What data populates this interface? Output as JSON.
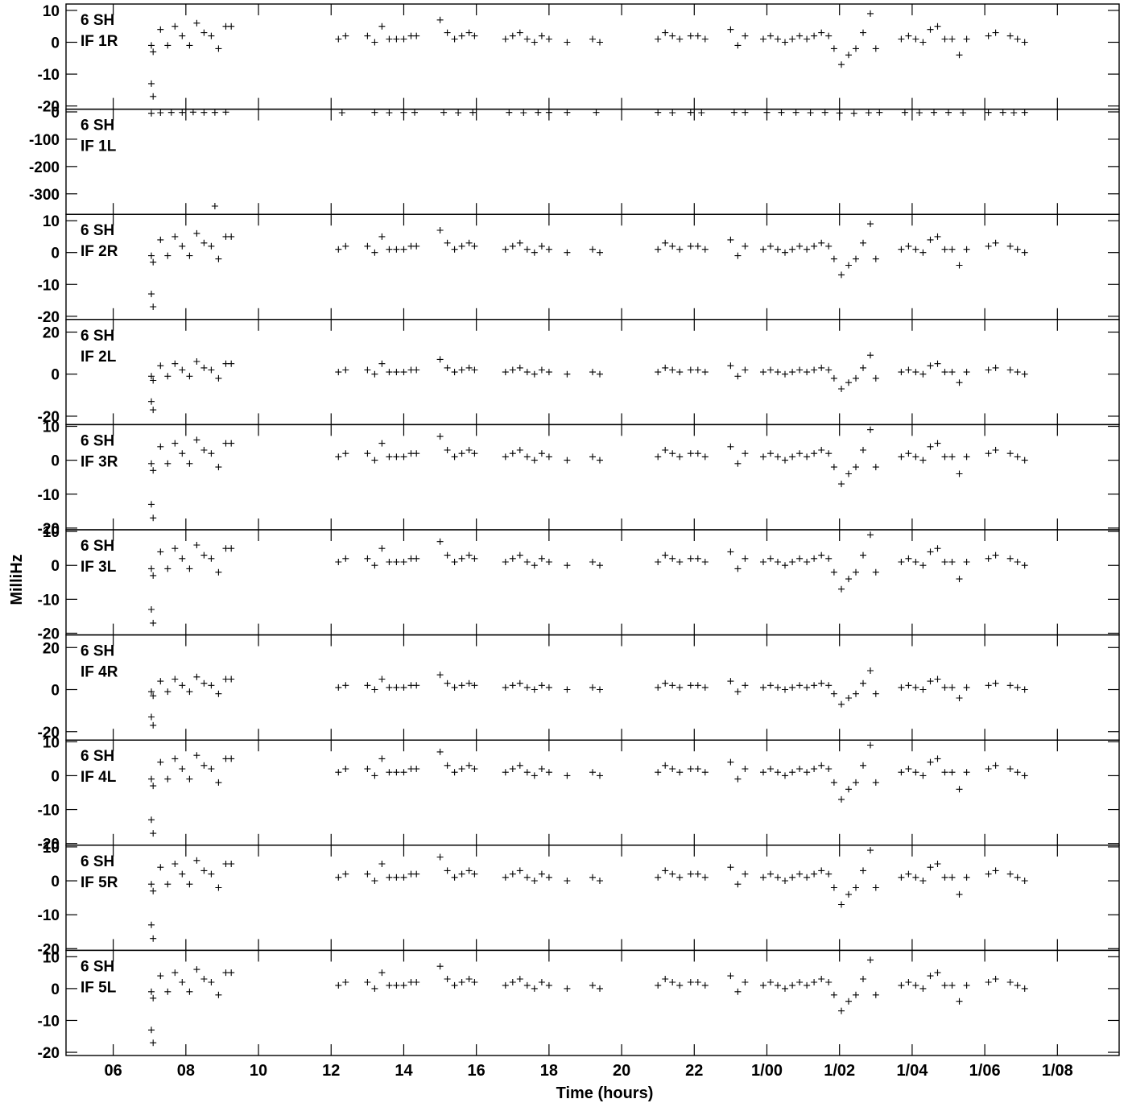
{
  "chart_data": {
    "type": "scatter",
    "xlabel": "Time (hours)",
    "ylabel": "MilliHz",
    "x_tick_labels": [
      "06",
      "08",
      "10",
      "12",
      "14",
      "16",
      "18",
      "20",
      "22",
      "1/00",
      "1/02",
      "1/04",
      "1/06",
      "1/08"
    ],
    "x_tick_hours": [
      6,
      8,
      10,
      12,
      14,
      16,
      18,
      20,
      22,
      24,
      26,
      28,
      30,
      32
    ],
    "xlim_hours": [
      4.7,
      33.7
    ],
    "marker": "+",
    "color": "#000000",
    "panels": [
      {
        "station": "6 SH",
        "channel": "IF 1R",
        "ylim": [
          -21,
          12
        ],
        "yticks": [
          10,
          0,
          -10,
          -20
        ],
        "tick_labels": [
          "10",
          "0",
          "-10",
          "-20"
        ]
      },
      {
        "station": "6 SH",
        "channel": "IF 1L",
        "ylim": [
          -375,
          10
        ],
        "yticks": [
          0,
          -100,
          -200,
          -300
        ],
        "tick_labels": [
          "0",
          "-100",
          "-200",
          "-300"
        ]
      },
      {
        "station": "6 SH",
        "channel": "IF 2R",
        "ylim": [
          -21,
          12
        ],
        "yticks": [
          10,
          0,
          -10,
          -20
        ],
        "tick_labels": [
          "10",
          "0",
          "-10",
          "-20"
        ]
      },
      {
        "station": "6 SH",
        "channel": "IF 2L",
        "ylim": [
          -24,
          26
        ],
        "yticks": [
          20,
          0,
          -20
        ],
        "tick_labels": [
          "20",
          "0",
          "-20"
        ]
      },
      {
        "station": "6 SH",
        "channel": "IF 3R",
        "ylim": [
          -20.5,
          10.5
        ],
        "yticks": [
          10,
          0,
          -10,
          -20
        ],
        "tick_labels": [
          "10",
          "0",
          "-10",
          "-20"
        ]
      },
      {
        "station": "6 SH",
        "channel": "IF 3L",
        "ylim": [
          -20.5,
          10.5
        ],
        "yticks": [
          10,
          0,
          -10,
          -20
        ],
        "tick_labels": [
          "10",
          "0",
          "-10",
          "-20"
        ]
      },
      {
        "station": "6 SH",
        "channel": "IF 4R",
        "ylim": [
          -24,
          26
        ],
        "yticks": [
          20,
          0,
          -20
        ],
        "tick_labels": [
          "20",
          "0",
          "-20"
        ]
      },
      {
        "station": "6 SH",
        "channel": "IF 4L",
        "ylim": [
          -20.5,
          10.5
        ],
        "yticks": [
          10,
          0,
          -10,
          -20
        ],
        "tick_labels": [
          "10",
          "0",
          "-10",
          "-20"
        ]
      },
      {
        "station": "6 SH",
        "channel": "IF 5R",
        "ylim": [
          -20.5,
          10.5
        ],
        "yticks": [
          10,
          0,
          -10,
          -20
        ],
        "tick_labels": [
          "10",
          "0",
          "-10",
          "-20"
        ]
      },
      {
        "station": "6 SH",
        "channel": "IF 5L",
        "ylim": [
          -21,
          12
        ],
        "yticks": [
          10,
          0,
          -10,
          -20
        ],
        "tick_labels": [
          "10",
          "0",
          "-10",
          "-20"
        ]
      }
    ],
    "common_series": {
      "x": [
        7.05,
        7.1,
        7.3,
        7.5,
        7.7,
        7.9,
        8.1,
        8.3,
        8.5,
        8.7,
        8.9,
        9.1,
        9.25,
        12.2,
        12.4,
        13.0,
        13.2,
        13.4,
        13.6,
        13.8,
        14.0,
        14.2,
        14.35,
        15.0,
        15.2,
        15.4,
        15.6,
        15.8,
        15.95,
        16.8,
        17.0,
        17.2,
        17.4,
        17.6,
        17.8,
        18.0,
        18.5,
        19.2,
        19.4,
        21.0,
        21.2,
        21.4,
        21.6,
        21.9,
        22.1,
        22.3,
        23.0,
        23.2,
        23.4,
        23.9,
        24.1,
        24.3,
        24.5,
        24.7,
        24.9,
        25.1,
        25.3,
        25.5,
        25.7,
        25.85,
        26.05,
        26.25,
        26.45,
        26.65,
        26.85,
        27.0,
        27.7,
        27.9,
        28.1,
        28.3,
        28.5,
        28.7,
        28.9,
        29.1,
        29.3,
        29.5,
        30.1,
        30.3,
        30.7,
        30.9,
        31.1
      ],
      "y": [
        -1,
        -3,
        4,
        -1,
        5,
        2,
        -1,
        6,
        3,
        2,
        -2,
        5,
        5,
        1,
        2,
        2,
        0,
        5,
        1,
        1,
        1,
        2,
        2,
        7,
        3,
        1,
        2,
        3,
        2,
        1,
        2,
        3,
        1,
        0,
        2,
        1,
        0,
        1,
        0,
        1,
        3,
        2,
        1,
        2,
        2,
        1,
        4,
        -1,
        2,
        1,
        2,
        1,
        0,
        1,
        2,
        1,
        2,
        3,
        2,
        -2,
        -7,
        -4,
        -2,
        3,
        9,
        -2,
        1,
        2,
        1,
        0,
        4,
        5,
        1,
        1,
        -4,
        1,
        2,
        3,
        2,
        1,
        0
      ]
    },
    "outliers": {
      "x": [
        7.05,
        7.1
      ],
      "y": [
        -13,
        -17
      ]
    },
    "panel_1L_series": {
      "x": [
        7.05,
        7.3,
        7.6,
        7.9,
        8.2,
        8.5,
        8.8,
        9.1,
        12.3,
        13.2,
        13.6,
        14.0,
        14.3,
        15.1,
        15.5,
        15.9,
        16.9,
        17.3,
        17.7,
        18.0,
        18.5,
        19.3,
        21.0,
        21.4,
        21.9,
        22.2,
        23.1,
        23.4,
        24.0,
        24.4,
        24.8,
        25.2,
        25.6,
        26.0,
        26.4,
        26.8,
        27.1,
        27.8,
        28.2,
        28.6,
        29.0,
        29.4,
        30.1,
        30.5,
        30.8,
        31.1
      ],
      "y": [
        -5,
        -3,
        -2,
        -2,
        -1,
        -2,
        -2,
        -1,
        -3,
        -2,
        -3,
        -2,
        -2,
        -2,
        -3,
        -2,
        -2,
        -3,
        -2,
        -2,
        -2,
        -2,
        -2,
        -3,
        -2,
        -3,
        -2,
        -2,
        -2,
        -2,
        -2,
        -3,
        -2,
        -4,
        -5,
        -3,
        -2,
        -2,
        -3,
        -2,
        -2,
        -3,
        -2,
        -2,
        -3,
        -2
      ],
      "outlier": {
        "x": 8.8,
        "y": -345
      }
    }
  }
}
